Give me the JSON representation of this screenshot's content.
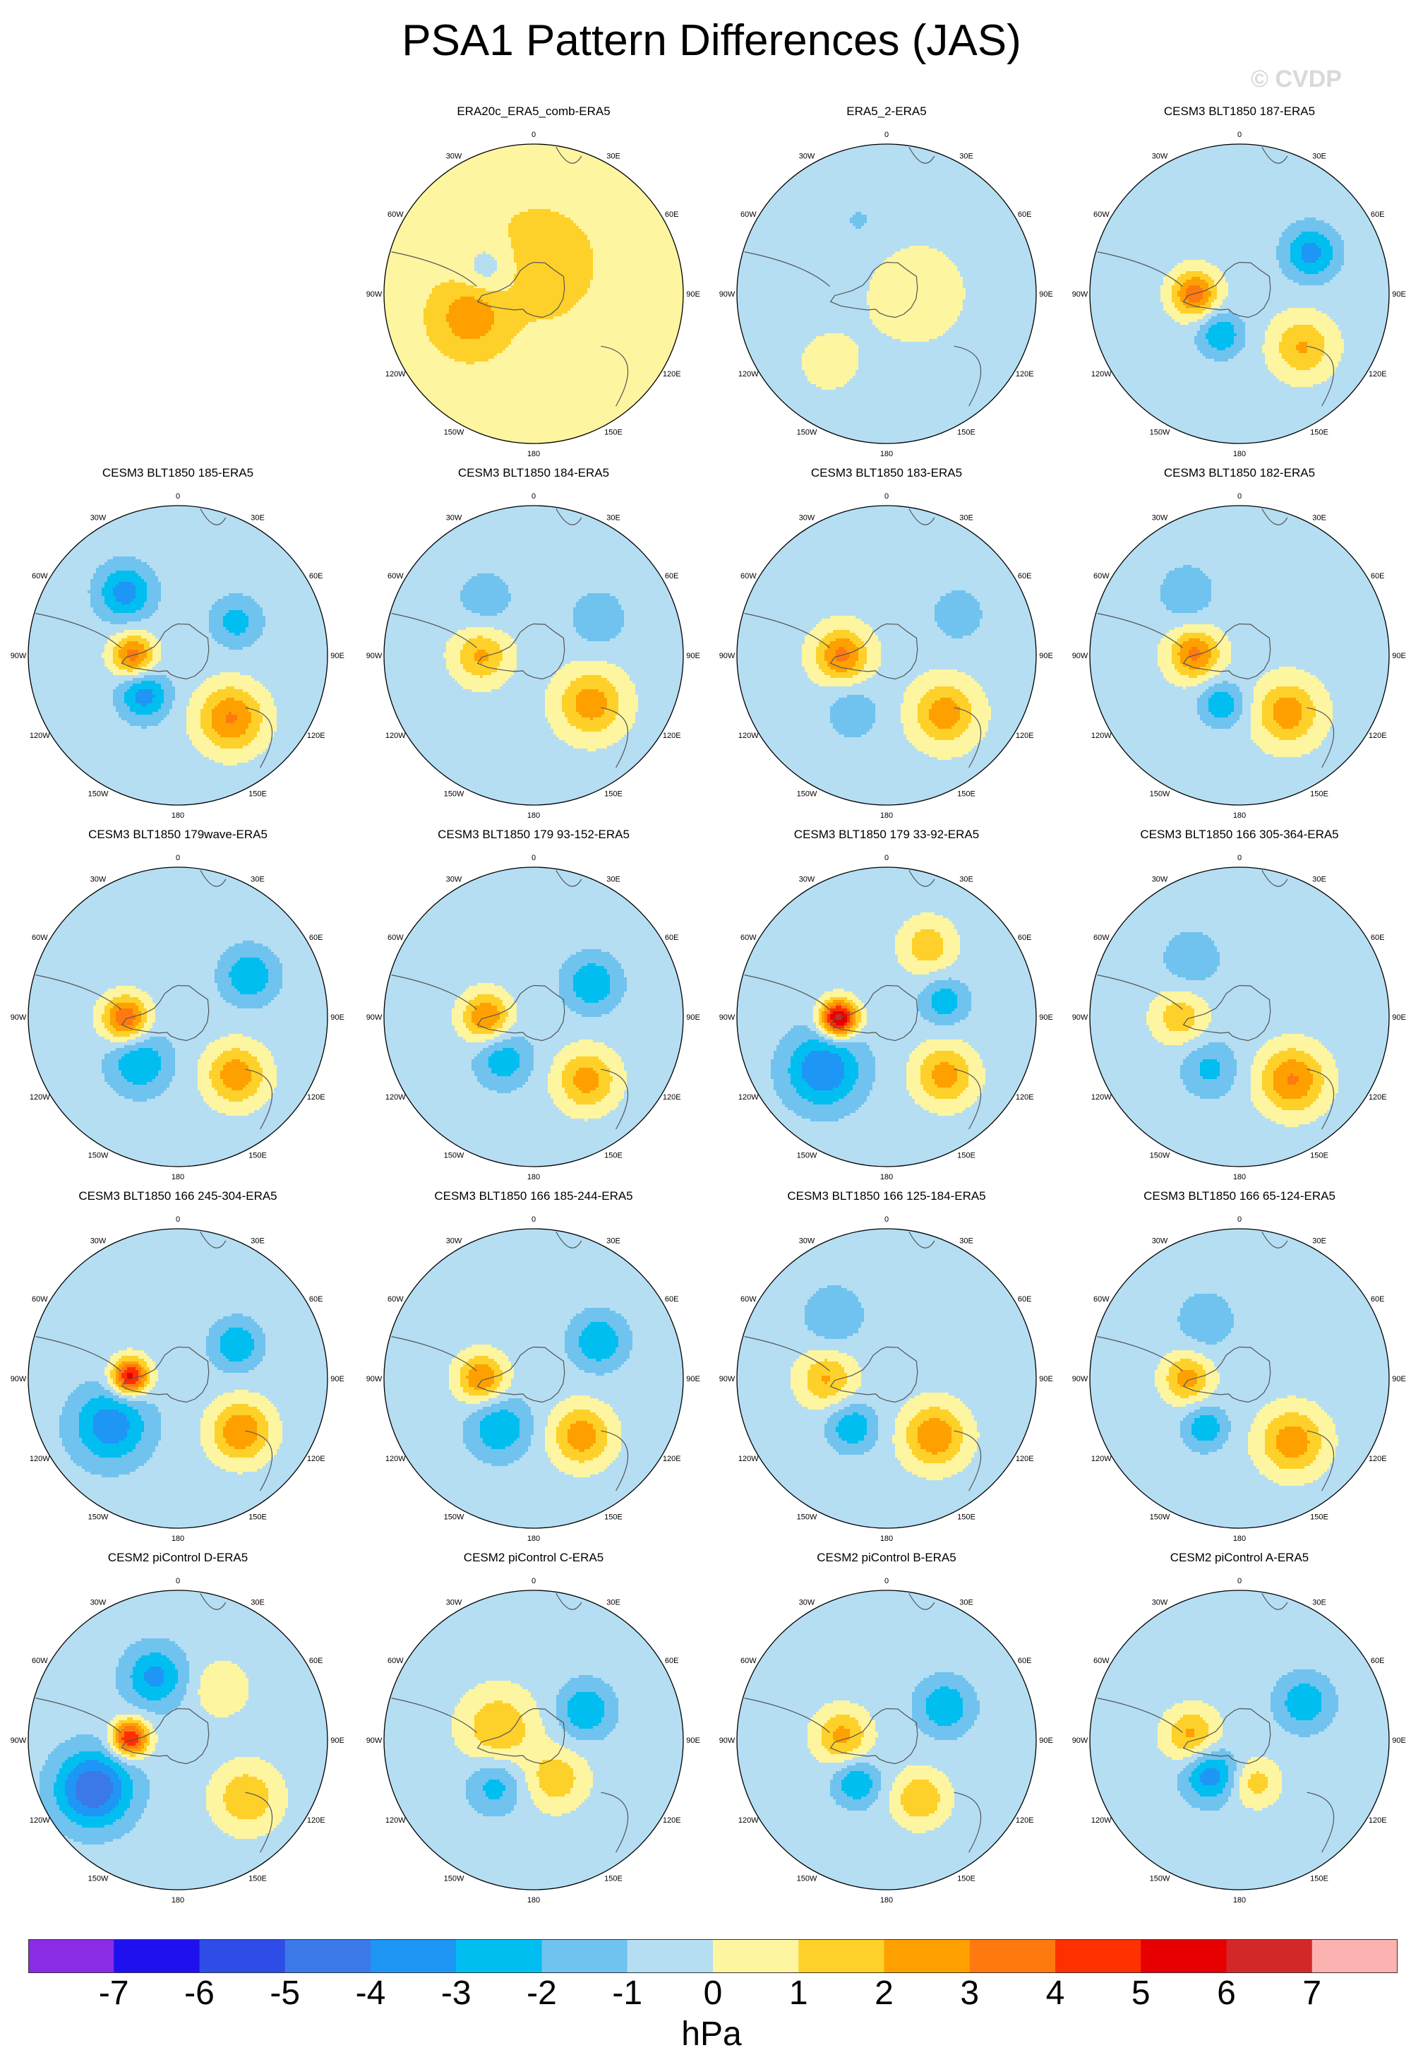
{
  "title": "PSA1 Pattern Differences (JAS)",
  "watermark": "© CVDP",
  "colors": {
    "levels": [
      "#8a2be6",
      "#1f10f0",
      "#2e4de6",
      "#3b79e8",
      "#1e96f5",
      "#00bff0",
      "#70c3ee",
      "#b5def3",
      "#fdf5a0",
      "#fed12a",
      "#fea100",
      "#fe7a10",
      "#fe3000",
      "#e60000",
      "#d42828",
      "#fdb2b2"
    ],
    "continent_outline": "#555555"
  },
  "chart_data": {
    "type": "polar-contour-map-grid",
    "projection": "south-polar stereographic",
    "units": "hPa",
    "colorbar": {
      "bounds": [
        -7,
        -6,
        -5,
        -4,
        -3,
        -2,
        -1,
        0,
        1,
        2,
        3,
        4,
        5,
        6,
        7
      ],
      "tick_labels": [
        "-7",
        "-6",
        "-5",
        "-4",
        "-3",
        "-2",
        "-1",
        "0",
        "1",
        "2",
        "3",
        "4",
        "5",
        "6",
        "7"
      ],
      "label": "hPa"
    },
    "lon_labels": [
      "0",
      "30E",
      "60E",
      "90E",
      "120E",
      "150E",
      "180",
      "150W",
      "120W",
      "90W",
      "60W",
      "30W"
    ],
    "panels": [
      {
        "title": "ERA20c_ERA5_comb-ERA5",
        "base": 0.8,
        "min": -1,
        "max": 2
      },
      {
        "title": "ERA5_2-ERA5",
        "base": -0.6,
        "min": -1,
        "max": 1
      },
      {
        "title": "CESM3 BLT1850 187-ERA5",
        "base": -0.4,
        "min": -3,
        "max": 4
      },
      {
        "title": "CESM3 BLT1850 185-ERA5",
        "base": -0.5,
        "min": -3,
        "max": 4
      },
      {
        "title": "CESM3 BLT1850 184-ERA5",
        "base": -0.4,
        "min": -2,
        "max": 3
      },
      {
        "title": "CESM3 BLT1850 183-ERA5",
        "base": -0.3,
        "min": -2,
        "max": 4
      },
      {
        "title": "CESM3 BLT1850 182-ERA5",
        "base": -0.3,
        "min": -3,
        "max": 4
      },
      {
        "title": "CESM3 BLT1850 179wave-ERA5",
        "base": -0.5,
        "min": -3,
        "max": 5
      },
      {
        "title": "CESM3 BLT1850 179 93-152-ERA5",
        "base": -0.5,
        "min": -3,
        "max": 4
      },
      {
        "title": "CESM3 BLT1850 179 33-92-ERA5",
        "base": -0.5,
        "min": -4,
        "max": 7
      },
      {
        "title": "CESM3 BLT1850 166 305-364-ERA5",
        "base": -0.5,
        "min": -2,
        "max": 4
      },
      {
        "title": "CESM3 BLT1850 166 245-304-ERA5",
        "base": -0.5,
        "min": -3,
        "max": 6
      },
      {
        "title": "CESM3 BLT1850 166 185-244-ERA5",
        "base": -0.5,
        "min": -3,
        "max": 4
      },
      {
        "title": "CESM3 BLT1850 166 125-184-ERA5",
        "base": -0.4,
        "min": -3,
        "max": 4
      },
      {
        "title": "CESM3 BLT1850 166 65-124-ERA5",
        "base": -0.5,
        "min": -3,
        "max": 4
      },
      {
        "title": "CESM2 piControl D-ERA5",
        "base": -0.5,
        "min": -5,
        "max": 6
      },
      {
        "title": "CESM2 piControl C-ERA5",
        "base": -0.5,
        "min": -3,
        "max": 3
      },
      {
        "title": "CESM2 piControl B-ERA5",
        "base": -0.5,
        "min": -3,
        "max": 3
      },
      {
        "title": "CESM2 piControl A-ERA5",
        "base": -0.5,
        "min": -3,
        "max": 3
      }
    ]
  }
}
